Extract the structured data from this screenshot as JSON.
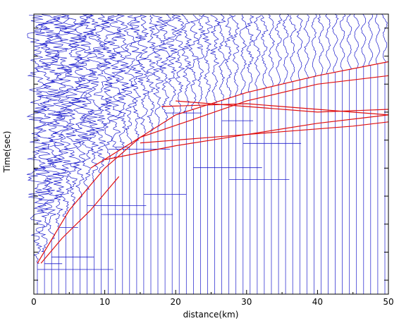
{
  "chart_data": {
    "type": "line",
    "title": "",
    "xlabel": "distance(km)",
    "ylabel": "Time(sec)",
    "xlim": [
      0,
      50
    ],
    "x_ticks": [
      0,
      10,
      20,
      30,
      40,
      50
    ],
    "x_tick_labels": [
      "0",
      "10",
      "20",
      "30",
      "40",
      "50"
    ],
    "y_tick_count": 10,
    "grid": false,
    "legend": "none",
    "trace_color": "#1a1acc",
    "pick_color": "#e01010",
    "trace_count": 50,
    "series": [
      {
        "x": [
          0.5,
          5,
          10,
          15,
          20,
          30,
          40,
          50
        ],
        "y": [
          0.89,
          0.7,
          0.55,
          0.44,
          0.36,
          0.28,
          0.22,
          0.17
        ]
      },
      {
        "x": [
          10,
          20,
          30,
          40,
          50
        ],
        "y": [
          0.52,
          0.47,
          0.43,
          0.39,
          0.36
        ]
      },
      {
        "x": [
          15,
          25,
          35,
          45,
          50
        ],
        "y": [
          0.46,
          0.44,
          0.42,
          0.4,
          0.385
        ]
      },
      {
        "x": [
          18,
          30,
          40,
          50
        ],
        "y": [
          0.33,
          0.32,
          0.34,
          0.36
        ]
      },
      {
        "x": [
          20,
          30,
          40,
          50
        ],
        "y": [
          0.31,
          0.33,
          0.35,
          0.34
        ]
      },
      {
        "x": [
          8,
          15,
          22,
          30,
          40,
          50
        ],
        "y": [
          0.55,
          0.44,
          0.38,
          0.31,
          0.25,
          0.22
        ]
      },
      {
        "x": [
          1,
          4,
          8,
          12
        ],
        "y": [
          0.89,
          0.8,
          0.7,
          0.58
        ]
      }
    ]
  }
}
